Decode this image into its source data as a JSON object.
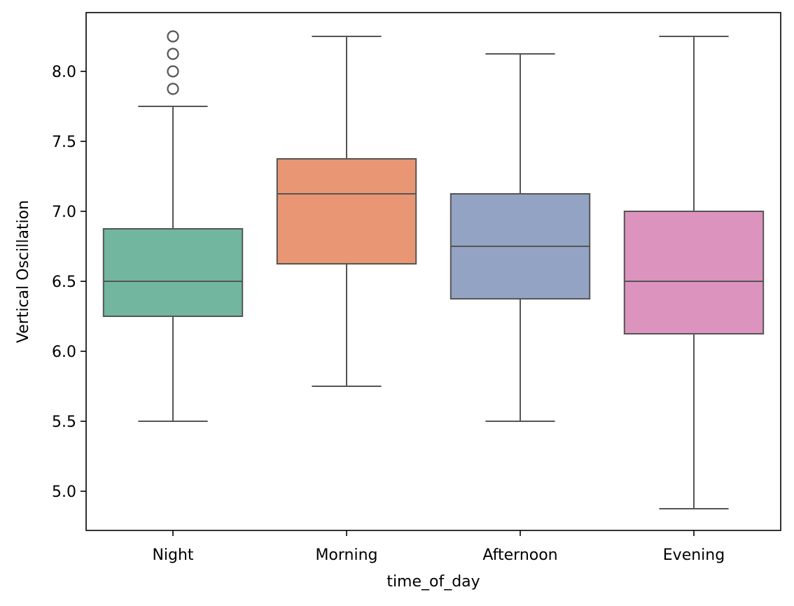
{
  "chart_data": {
    "type": "box",
    "title": "",
    "xlabel": "time_of_day",
    "ylabel": "Vertical Oscillation",
    "ylim": [
      4.72,
      8.42
    ],
    "yticks": [
      "5.0",
      "5.5",
      "6.0",
      "6.5",
      "7.0",
      "7.5",
      "8.0"
    ],
    "categories": [
      "Night",
      "Morning",
      "Afternoon",
      "Evening"
    ],
    "boxes": [
      {
        "category": "Night",
        "color": "#72b69f",
        "whisker_low": 5.5,
        "q1": 6.25,
        "median": 6.5,
        "q3": 6.875,
        "whisker_high": 7.75,
        "outliers": [
          7.875,
          8.0,
          8.125,
          8.25
        ]
      },
      {
        "category": "Morning",
        "color": "#e89673",
        "whisker_low": 5.75,
        "q1": 6.625,
        "median": 7.125,
        "q3": 7.375,
        "whisker_high": 8.25,
        "outliers": []
      },
      {
        "category": "Afternoon",
        "color": "#93a3c4",
        "whisker_low": 5.5,
        "q1": 6.375,
        "median": 6.75,
        "q3": 7.125,
        "whisker_high": 8.125,
        "outliers": []
      },
      {
        "category": "Evening",
        "color": "#dc94bf",
        "whisker_low": 4.875,
        "q1": 6.125,
        "median": 6.5,
        "q3": 7.0,
        "whisker_high": 8.25,
        "outliers": []
      }
    ],
    "line_color": "#555555",
    "grid": false,
    "legend": false
  }
}
